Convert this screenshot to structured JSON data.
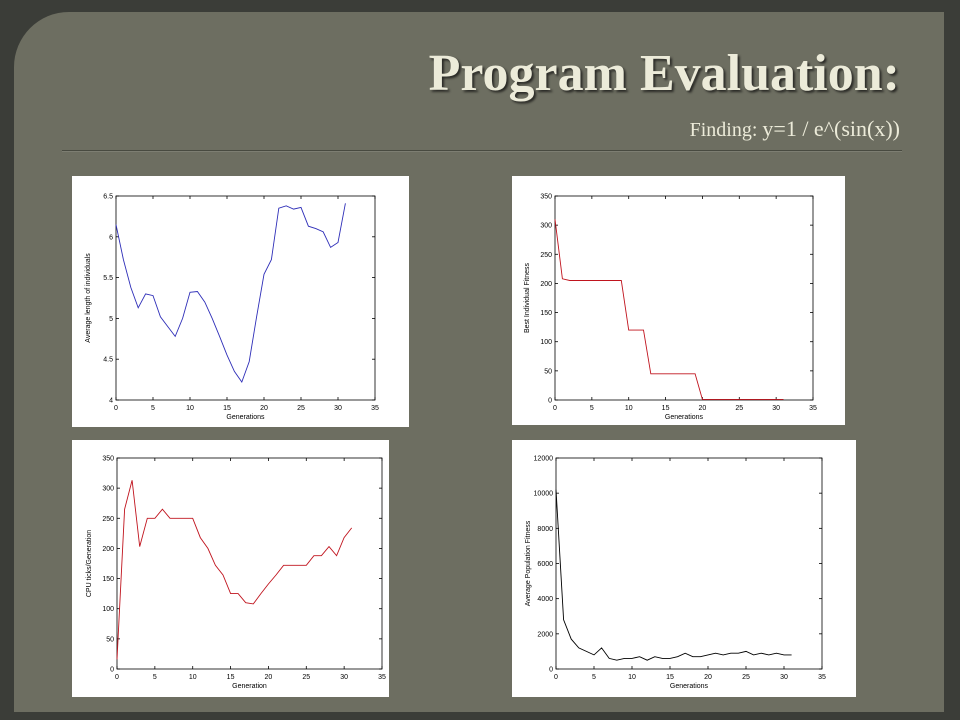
{
  "slide": {
    "title": "Program Evaluation:",
    "subtitle_prefix": "Finding:",
    "subtitle_formula": "y=1 / e^(sin(x))"
  },
  "colors": {
    "blue": "#2e2eb8",
    "red": "#c0141e",
    "black": "#000000"
  },
  "chart_data": [
    {
      "type": "line",
      "xlabel": "Generations",
      "ylabel": "Average length of individuals",
      "xlim": [
        0,
        35
      ],
      "ylim": [
        4,
        6.5
      ],
      "xticks": [
        "0",
        "5",
        "10",
        "15",
        "20",
        "25",
        "30",
        "35"
      ],
      "yticks": [
        "4",
        "4.5",
        "5",
        "5.5",
        "6",
        "6.5"
      ],
      "color": "#2e2eb8",
      "x": [
        0,
        1,
        2,
        3,
        4,
        5,
        6,
        7,
        8,
        9,
        10,
        11,
        12,
        13,
        14,
        15,
        16,
        17,
        18,
        19,
        20,
        21,
        22,
        23,
        24,
        25,
        26,
        27,
        28,
        29,
        30,
        31
      ],
      "y": [
        6.15,
        5.72,
        5.38,
        5.13,
        5.3,
        5.28,
        5.02,
        4.9,
        4.78,
        5.0,
        5.32,
        5.33,
        5.2,
        5.0,
        4.78,
        4.55,
        4.35,
        4.22,
        4.47,
        5.02,
        5.54,
        5.72,
        6.35,
        6.38,
        6.34,
        6.36,
        6.13,
        6.1,
        6.06,
        5.87,
        5.93,
        6.41
      ]
    },
    {
      "type": "line",
      "xlabel": "Generations",
      "ylabel": "Best Individual Fitness",
      "xlim": [
        0,
        35
      ],
      "ylim": [
        0,
        350
      ],
      "xticks": [
        "0",
        "5",
        "10",
        "15",
        "20",
        "25",
        "30",
        "35"
      ],
      "yticks": [
        "0",
        "50",
        "100",
        "150",
        "200",
        "250",
        "300",
        "350"
      ],
      "color": "#c0141e",
      "x": [
        0,
        1,
        2,
        3,
        4,
        5,
        6,
        7,
        8,
        9,
        10,
        11,
        12,
        13,
        14,
        15,
        16,
        17,
        18,
        19,
        20,
        21,
        22,
        23,
        24,
        25,
        26,
        27,
        28,
        29,
        30,
        31
      ],
      "y": [
        310,
        208,
        205,
        205,
        205,
        205,
        205,
        205,
        205,
        205,
        120,
        120,
        120,
        45,
        45,
        45,
        45,
        45,
        45,
        45,
        1,
        1,
        1,
        1,
        1,
        1,
        1,
        1,
        1,
        1,
        1,
        1
      ]
    },
    {
      "type": "line",
      "xlabel": "Generation",
      "ylabel": "CPU ticks/Generation",
      "xlim": [
        0,
        35
      ],
      "ylim": [
        0,
        350
      ],
      "xticks": [
        "0",
        "5",
        "10",
        "15",
        "20",
        "25",
        "30",
        "35"
      ],
      "yticks": [
        "0",
        "50",
        "100",
        "150",
        "200",
        "250",
        "300",
        "350"
      ],
      "color": "#c0141e",
      "x": [
        0,
        1,
        2,
        3,
        4,
        5,
        6,
        7,
        8,
        9,
        10,
        11,
        12,
        13,
        14,
        15,
        16,
        17,
        18,
        19,
        20,
        21,
        22,
        23,
        24,
        25,
        26,
        27,
        28,
        29,
        30,
        31
      ],
      "y": [
        16,
        265,
        313,
        203,
        250,
        250,
        265,
        250,
        250,
        250,
        250,
        218,
        200,
        172,
        156,
        125,
        125,
        110,
        108,
        125,
        141,
        156,
        172,
        172,
        172,
        172,
        188,
        188,
        203,
        188,
        218,
        234
      ]
    },
    {
      "type": "line",
      "xlabel": "Generations",
      "ylabel": "Average Population Fitness",
      "xlim": [
        0,
        35
      ],
      "ylim": [
        0,
        12000
      ],
      "xticks": [
        "0",
        "5",
        "10",
        "15",
        "20",
        "25",
        "30",
        "35"
      ],
      "yticks": [
        "0",
        "2000",
        "4000",
        "6000",
        "8000",
        "10000",
        "12000"
      ],
      "color": "#000000",
      "x": [
        0,
        1,
        2,
        3,
        4,
        5,
        6,
        7,
        8,
        9,
        10,
        11,
        12,
        13,
        14,
        15,
        16,
        17,
        18,
        19,
        20,
        21,
        22,
        23,
        24,
        25,
        26,
        27,
        28,
        29,
        30,
        31
      ],
      "y": [
        10200,
        2800,
        1700,
        1200,
        1000,
        800,
        1200,
        600,
        500,
        600,
        600,
        700,
        500,
        700,
        600,
        600,
        700,
        900,
        700,
        700,
        800,
        900,
        800,
        900,
        900,
        1000,
        800,
        900,
        800,
        900,
        800,
        800
      ]
    }
  ]
}
